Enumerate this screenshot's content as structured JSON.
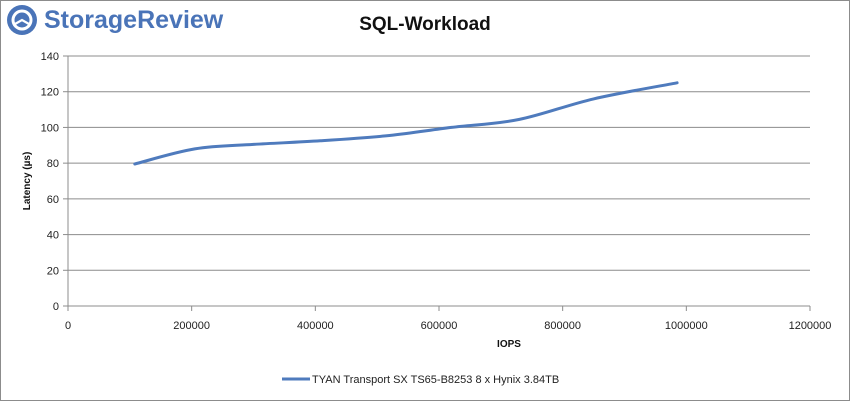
{
  "brand": {
    "name": "StorageReview",
    "color": "#4a74b8"
  },
  "chart_data": {
    "type": "line",
    "title": "SQL-Workload",
    "xlabel": "IOPS",
    "ylabel": "Latency (µs)",
    "xlim": [
      0,
      1200000
    ],
    "ylim": [
      0,
      140
    ],
    "x_ticks": [
      0,
      200000,
      400000,
      600000,
      800000,
      1000000,
      1200000
    ],
    "y_ticks": [
      0,
      20,
      40,
      60,
      80,
      100,
      120,
      140
    ],
    "grid": "horizontal",
    "legend_position": "bottom",
    "series": [
      {
        "name": "TYAN Transport SX TS65-B8253 8 x Hynix 3.84TB",
        "color": "#4f7bbd",
        "x": [
          108000,
          205000,
          300000,
          408000,
          520000,
          620000,
          730000,
          850000,
          985000
        ],
        "y": [
          79.5,
          88.0,
          90.5,
          92.5,
          95.5,
          100.0,
          104.5,
          116.0,
          125.0
        ]
      }
    ]
  }
}
